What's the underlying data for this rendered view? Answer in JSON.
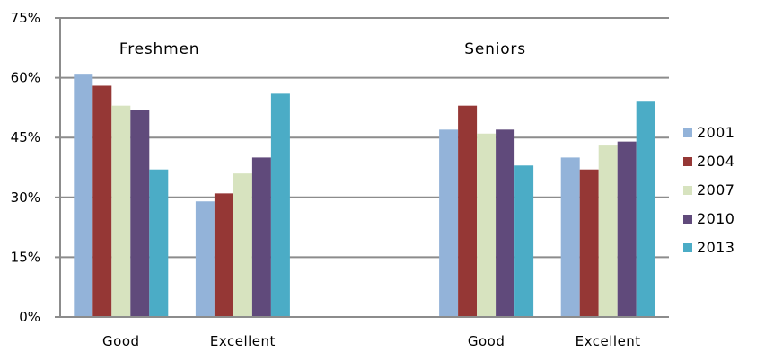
{
  "chart_data": {
    "type": "bar",
    "categories": [
      "Good",
      "Excellent",
      "Good",
      "Excellent"
    ],
    "groups": [
      "Freshmen",
      "Seniors"
    ],
    "series": [
      {
        "name": "2001",
        "color": "#93B3D9",
        "values": [
          61,
          29,
          47,
          40
        ]
      },
      {
        "name": "2004",
        "color": "#953735",
        "values": [
          58,
          31,
          53,
          37
        ]
      },
      {
        "name": "2007",
        "color": "#D7E3BF",
        "values": [
          53,
          36,
          46,
          43
        ]
      },
      {
        "name": "2010",
        "color": "#604A7B",
        "values": [
          52,
          40,
          47,
          44
        ]
      },
      {
        "name": "2013",
        "color": "#4BACC6",
        "values": [
          37,
          56,
          38,
          54
        ]
      }
    ],
    "ylim": [
      0,
      75
    ],
    "yticks": [
      "0%",
      "15%",
      "30%",
      "45%",
      "60%",
      "75%"
    ],
    "ytick_values": [
      0,
      15,
      30,
      45,
      60,
      75
    ],
    "grid": true,
    "legend": "right",
    "title": "",
    "xlabel": "",
    "ylabel": ""
  }
}
